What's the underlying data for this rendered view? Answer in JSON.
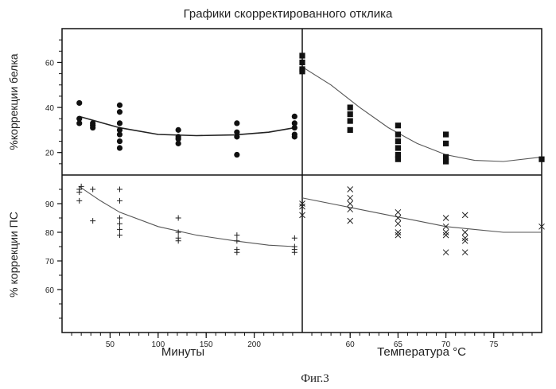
{
  "figure": {
    "title": "Графики скорректированного отклика",
    "caption": "Фиг.3"
  },
  "chart_data": [
    {
      "type": "scatter",
      "panel": "top-left",
      "ylabel": "%коррекции белка",
      "xlabel": "",
      "xlim": [
        0,
        250
      ],
      "ylim": [
        10,
        75
      ],
      "yticks": [
        20,
        40,
        60
      ],
      "marker": "circle",
      "points": [
        [
          18,
          42
        ],
        [
          18,
          35
        ],
        [
          18,
          33
        ],
        [
          32,
          33
        ],
        [
          32,
          32
        ],
        [
          32,
          31
        ],
        [
          60,
          41
        ],
        [
          60,
          38
        ],
        [
          60,
          33
        ],
        [
          60,
          30
        ],
        [
          60,
          28
        ],
        [
          60,
          25
        ],
        [
          60,
          22
        ],
        [
          121,
          30
        ],
        [
          121,
          27
        ],
        [
          121,
          26
        ],
        [
          121,
          24
        ],
        [
          182,
          33
        ],
        [
          182,
          29
        ],
        [
          182,
          27
        ],
        [
          182,
          19
        ],
        [
          242,
          36
        ],
        [
          242,
          33
        ],
        [
          242,
          31
        ],
        [
          242,
          28
        ],
        [
          242,
          27
        ]
      ],
      "fit": [
        [
          18,
          36
        ],
        [
          60,
          31
        ],
        [
          100,
          28
        ],
        [
          140,
          27.5
        ],
        [
          180,
          27.8
        ],
        [
          215,
          29
        ],
        [
          242,
          31
        ]
      ]
    },
    {
      "type": "scatter",
      "panel": "top-right",
      "ylabel": "",
      "xlabel": "",
      "xlim": [
        55,
        80
      ],
      "ylim": [
        10,
        75
      ],
      "marker": "square",
      "points": [
        [
          55,
          63
        ],
        [
          55,
          60
        ],
        [
          55,
          57
        ],
        [
          55,
          56
        ],
        [
          60,
          40
        ],
        [
          60,
          37
        ],
        [
          60,
          34
        ],
        [
          60,
          30
        ],
        [
          65,
          32
        ],
        [
          65,
          28
        ],
        [
          65,
          25
        ],
        [
          65,
          22
        ],
        [
          65,
          19
        ],
        [
          65,
          17
        ],
        [
          70,
          28
        ],
        [
          70,
          24
        ],
        [
          70,
          18
        ],
        [
          70,
          16
        ],
        [
          80,
          17
        ]
      ],
      "fit": [
        [
          55,
          58
        ],
        [
          58,
          50
        ],
        [
          61,
          40
        ],
        [
          64,
          31
        ],
        [
          67,
          24
        ],
        [
          70,
          19
        ],
        [
          73,
          16.5
        ],
        [
          76,
          16
        ],
        [
          80,
          18
        ]
      ]
    },
    {
      "type": "scatter",
      "panel": "bottom-left",
      "ylabel": "% коррекции ПС",
      "xlabel": "Минуты",
      "xlim": [
        0,
        250
      ],
      "ylim": [
        45,
        100
      ],
      "xticks": [
        50,
        100,
        150,
        200
      ],
      "yticks": [
        60,
        70,
        80,
        90
      ],
      "marker": "plus",
      "points": [
        [
          18,
          95
        ],
        [
          18,
          94
        ],
        [
          18,
          91
        ],
        [
          20,
          96
        ],
        [
          32,
          95
        ],
        [
          32,
          84
        ],
        [
          60,
          95
        ],
        [
          60,
          91
        ],
        [
          60,
          85
        ],
        [
          60,
          83
        ],
        [
          60,
          81
        ],
        [
          60,
          79
        ],
        [
          121,
          85
        ],
        [
          121,
          80
        ],
        [
          121,
          78
        ],
        [
          121,
          77
        ],
        [
          182,
          79
        ],
        [
          182,
          77
        ],
        [
          182,
          74
        ],
        [
          182,
          73
        ],
        [
          242,
          78
        ],
        [
          242,
          75
        ],
        [
          242,
          74
        ],
        [
          242,
          73
        ]
      ],
      "fit": [
        [
          18,
          96
        ],
        [
          40,
          91
        ],
        [
          60,
          87
        ],
        [
          100,
          82
        ],
        [
          140,
          79
        ],
        [
          180,
          77
        ],
        [
          215,
          75.5
        ],
        [
          242,
          75
        ]
      ]
    },
    {
      "type": "scatter",
      "panel": "bottom-right",
      "ylabel": "",
      "xlabel": "Температура °C",
      "xlim": [
        55,
        80
      ],
      "ylim": [
        45,
        100
      ],
      "xticks": [
        60,
        65,
        70,
        75
      ],
      "marker": "x",
      "points": [
        [
          55,
          90
        ],
        [
          55,
          89
        ],
        [
          55,
          86
        ],
        [
          60,
          95
        ],
        [
          60,
          92
        ],
        [
          60,
          90
        ],
        [
          60,
          88
        ],
        [
          60,
          84
        ],
        [
          65,
          87
        ],
        [
          65,
          85
        ],
        [
          65,
          83
        ],
        [
          65,
          80
        ],
        [
          65,
          79
        ],
        [
          70,
          85
        ],
        [
          70,
          82
        ],
        [
          70,
          80
        ],
        [
          70,
          79
        ],
        [
          70,
          73
        ],
        [
          72,
          86
        ],
        [
          72,
          80
        ],
        [
          72,
          78
        ],
        [
          72,
          77
        ],
        [
          72,
          73
        ],
        [
          80,
          82
        ]
      ],
      "fit": [
        [
          55,
          92
        ],
        [
          58,
          90
        ],
        [
          61,
          88
        ],
        [
          64,
          86
        ],
        [
          67,
          84
        ],
        [
          70,
          82
        ],
        [
          73,
          81
        ],
        [
          76,
          80
        ],
        [
          80,
          80
        ]
      ]
    }
  ]
}
